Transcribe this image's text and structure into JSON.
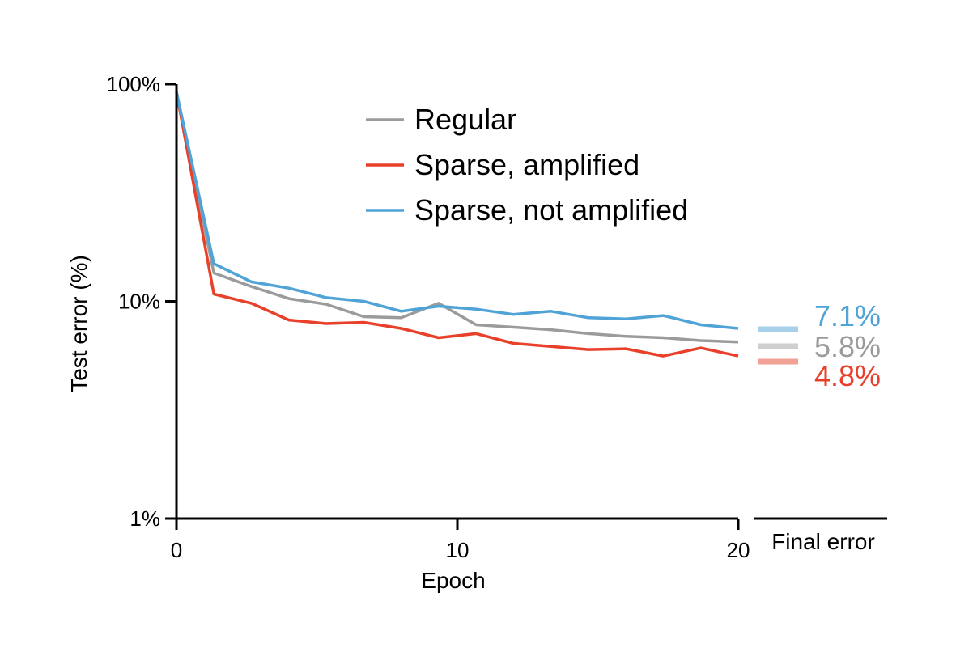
{
  "chart_data": {
    "type": "line",
    "title": "",
    "xlabel": "Epoch",
    "ylabel": "Test error (%)",
    "yscale": "log",
    "xlim": [
      0,
      20
    ],
    "ylim": [
      1,
      100
    ],
    "x_ticks": [
      0,
      10,
      20
    ],
    "x_tick_labels": [
      "0",
      "10",
      "20"
    ],
    "y_ticks": [
      1,
      10,
      100
    ],
    "y_tick_labels": [
      "1%",
      "10%",
      "100%"
    ],
    "grid": false,
    "legend_position": "top-center",
    "x": [
      0,
      1.33,
      2.67,
      4,
      5.33,
      6.67,
      8,
      9.33,
      10.67,
      12,
      13.33,
      14.67,
      16,
      17.33,
      18.67,
      20
    ],
    "series": [
      {
        "name": "Regular",
        "color": "#9b9b9b",
        "values": [
          92,
          13.5,
          11.7,
          10.3,
          9.7,
          8.5,
          8.4,
          9.8,
          7.8,
          7.6,
          7.4,
          7.1,
          6.9,
          6.8,
          6.6,
          6.5
        ]
      },
      {
        "name": "Sparse, amplified",
        "color": "#e8402a",
        "values": [
          92,
          10.8,
          9.8,
          8.2,
          7.9,
          8.0,
          7.5,
          6.8,
          7.1,
          6.4,
          6.2,
          6.0,
          6.05,
          5.6,
          6.1,
          5.6
        ]
      },
      {
        "name": "Sparse, not amplified",
        "color": "#4fa3d6",
        "values": [
          92,
          14.9,
          12.3,
          11.5,
          10.4,
          10.0,
          9.0,
          9.5,
          9.2,
          8.7,
          9.0,
          8.4,
          8.3,
          8.6,
          7.8,
          7.5
        ]
      }
    ],
    "final_error": {
      "label": "Final error",
      "items": [
        {
          "series": "Sparse, not amplified",
          "value": 7.1,
          "text": "7.1%",
          "color": "#4fa3d6",
          "light_color": "#a8d0ea"
        },
        {
          "series": "Regular",
          "value": 5.8,
          "text": "5.8%",
          "color": "#9b9b9b",
          "light_color": "#cfcfcf"
        },
        {
          "series": "Sparse, amplified",
          "value": 4.8,
          "text": "4.8%",
          "color": "#e8402a",
          "light_color": "#f2a196"
        }
      ]
    }
  }
}
